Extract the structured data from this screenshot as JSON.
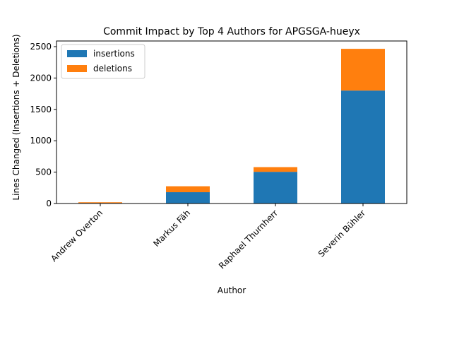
{
  "chart_data": {
    "type": "bar",
    "stacked": true,
    "title": "Commit Impact by Top 4 Authors for APGSGA-hueyx",
    "xlabel": "Author",
    "ylabel": "Lines Changed (Insertions + Deletions)",
    "categories": [
      "Andrew Overton",
      "Markus Fäh",
      "Raphael Thurnherr",
      "Severin Bühler"
    ],
    "series": [
      {
        "name": "insertions",
        "color": "#1f77b4",
        "values": [
          8,
          180,
          505,
          1800
        ]
      },
      {
        "name": "deletions",
        "color": "#ff7f0e",
        "values": [
          12,
          95,
          75,
          665
        ]
      }
    ],
    "ylim": [
      0,
      2590
    ],
    "yticks": [
      0,
      500,
      1000,
      1500,
      2000,
      2500
    ],
    "grid": false,
    "legend_position": "top-left"
  }
}
